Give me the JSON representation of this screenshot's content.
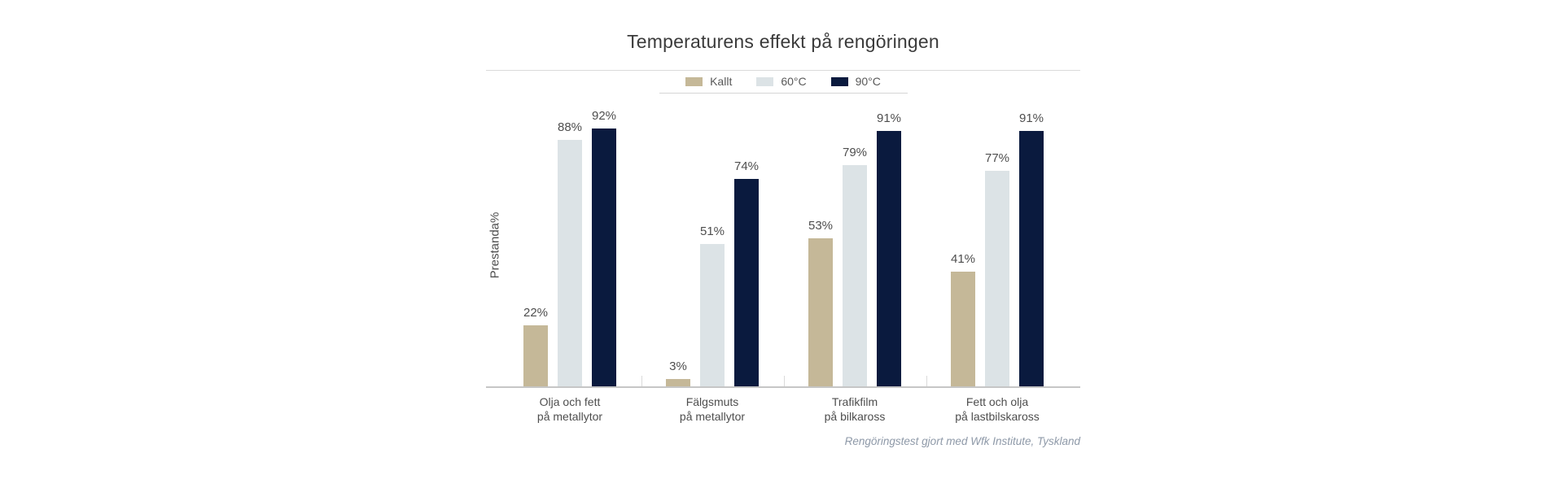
{
  "chart_data": {
    "type": "bar",
    "title": "Temperaturens effekt på rengöringen",
    "ylabel": "Prestanda%",
    "footer": "Rengöringstest gjort med Wfk Institute, Tyskland",
    "categories": [
      [
        "Olja och fett",
        "på metallytor"
      ],
      [
        "Fälgsmuts",
        "på metallytor"
      ],
      [
        "Trafikfilm",
        "på bilkaross"
      ],
      [
        "Fett och olja",
        "på lastbilskaross"
      ]
    ],
    "series": [
      {
        "name": "Kallt",
        "color": "#c5b898",
        "values": [
          22,
          3,
          53,
          41
        ]
      },
      {
        "name": "60°C",
        "color": "#dce3e6",
        "values": [
          88,
          51,
          79,
          77
        ]
      },
      {
        "name": "90°C",
        "color": "#0a1a3e",
        "values": [
          92,
          74,
          91,
          91
        ]
      }
    ],
    "value_suffix": "%",
    "ylim": [
      0,
      100
    ],
    "grid": false,
    "legend_position": "top-center"
  }
}
